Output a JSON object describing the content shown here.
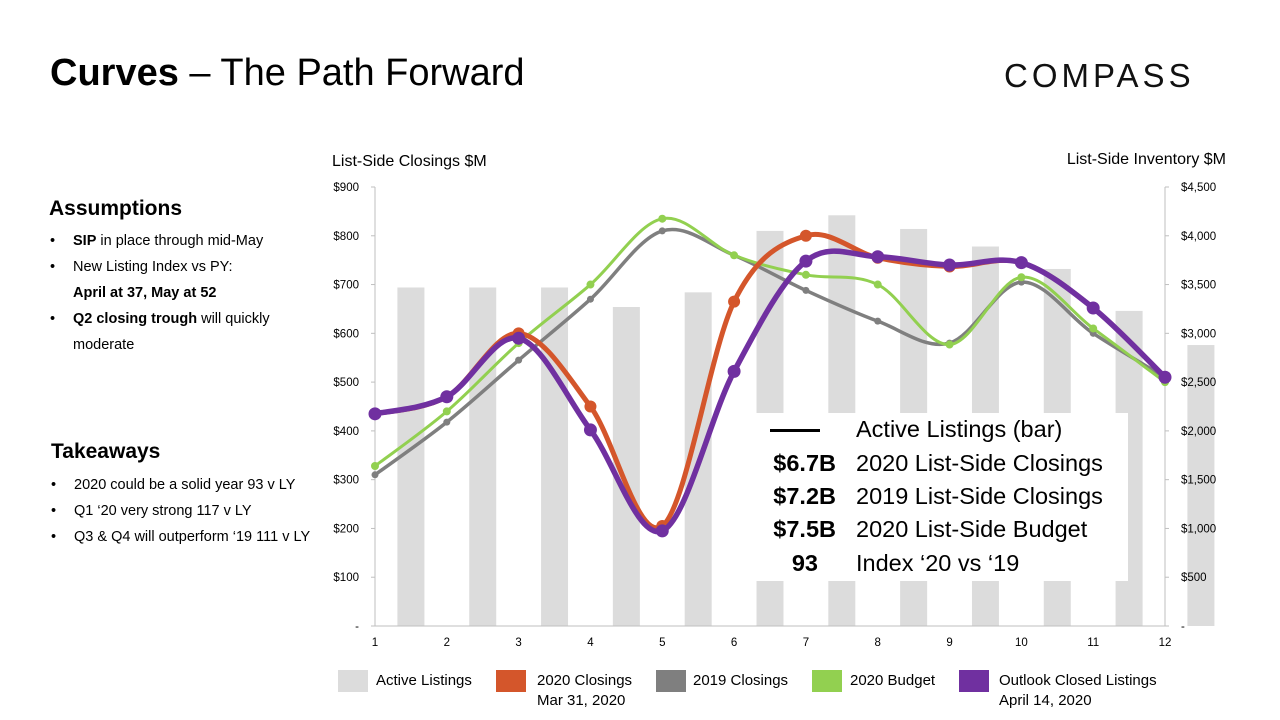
{
  "title": {
    "bold": "Curves",
    "rest": " – The Path Forward"
  },
  "logo": "COMPASS",
  "assumptions": {
    "heading": "Assumptions",
    "items": [
      {
        "bold": "SIP",
        "rest": " in place through mid-May"
      },
      {
        "line1": "New Listing Index vs PY:",
        "line2": "April at 37, May at 52"
      },
      {
        "bold": "Q2 closing trough",
        "rest": " will quickly moderate"
      }
    ]
  },
  "takeaways": {
    "heading": "Takeaways",
    "items": [
      "2020 could be a solid year 93 v LY",
      "Q1 ‘20 very strong 117 v LY",
      "Q3 & Q4 will outperform ‘19 111 v LY"
    ]
  },
  "info_box": {
    "rows": [
      {
        "amount": "",
        "label": "Active Listings (bar)"
      },
      {
        "amount": "$6.7B",
        "label": "2020 List-Side Closings"
      },
      {
        "amount": "$7.2B",
        "label": "2019 List-Side Closings"
      },
      {
        "amount": "$7.5B",
        "label": "2020 List-Side Budget"
      },
      {
        "amount": "93",
        "label": "Index ‘20 vs ‘19"
      }
    ]
  },
  "legend": [
    {
      "label": "Active Listings",
      "sub": "",
      "color": "#dcdcdc"
    },
    {
      "label": "2020 Closings",
      "sub": "Mar 31, 2020",
      "color": "#d4562b"
    },
    {
      "label": "2019 Closings",
      "sub": "",
      "color": "#7f7f7f"
    },
    {
      "label": "2020 Budget",
      "sub": "",
      "color": "#92d050"
    },
    {
      "label": "Outlook Closed Listings",
      "sub": "April 14, 2020",
      "color": "#7030a0"
    }
  ],
  "chart_data": {
    "type": "bar+line",
    "categories": [
      "1",
      "2",
      "3",
      "4",
      "5",
      "6",
      "7",
      "8",
      "9",
      "10",
      "11",
      "12"
    ],
    "ylabel_left": "List-Side Closings $M",
    "ylabel_right": "List-Side Inventory $M",
    "ylim_left": [
      0,
      900
    ],
    "ylim_right": [
      0,
      4500
    ],
    "yticks_left": [
      "-",
      "$100",
      "$200",
      "$300",
      "$400",
      "$500",
      "$600",
      "$700",
      "$800",
      "$900"
    ],
    "yticks_right": [
      "-",
      "$500",
      "$1,000",
      "$1,500",
      "$2,000",
      "$2,500",
      "$3,000",
      "$3,500",
      "$4,000",
      "$4,500"
    ],
    "bars": {
      "name": "Active Listings",
      "axis": "right",
      "color": "#dcdcdc",
      "values": [
        3470,
        3470,
        3470,
        3270,
        3420,
        4050,
        4210,
        4070,
        3890,
        3660,
        3230,
        2880
      ]
    },
    "series": [
      {
        "name": "2019 Closings",
        "axis": "left",
        "color": "#7f7f7f",
        "values": [
          310,
          418,
          545,
          670,
          810,
          760,
          688,
          625,
          580,
          705,
          600,
          510
        ]
      },
      {
        "name": "2020 Budget",
        "axis": "left",
        "color": "#92d050",
        "values": [
          328,
          440,
          580,
          700,
          835,
          760,
          720,
          700,
          577,
          715,
          610,
          500
        ]
      },
      {
        "name": "2020 Closings",
        "axis": "left",
        "color": "#d4562b",
        "values": [
          435,
          470,
          600,
          450,
          205,
          665,
          800,
          755,
          737,
          745,
          652,
          510
        ]
      },
      {
        "name": "Outlook Closed Listings",
        "axis": "left",
        "color": "#7030a0",
        "values": [
          435,
          470,
          590,
          402,
          195,
          522,
          748,
          757,
          740,
          745,
          652,
          510
        ]
      }
    ]
  }
}
